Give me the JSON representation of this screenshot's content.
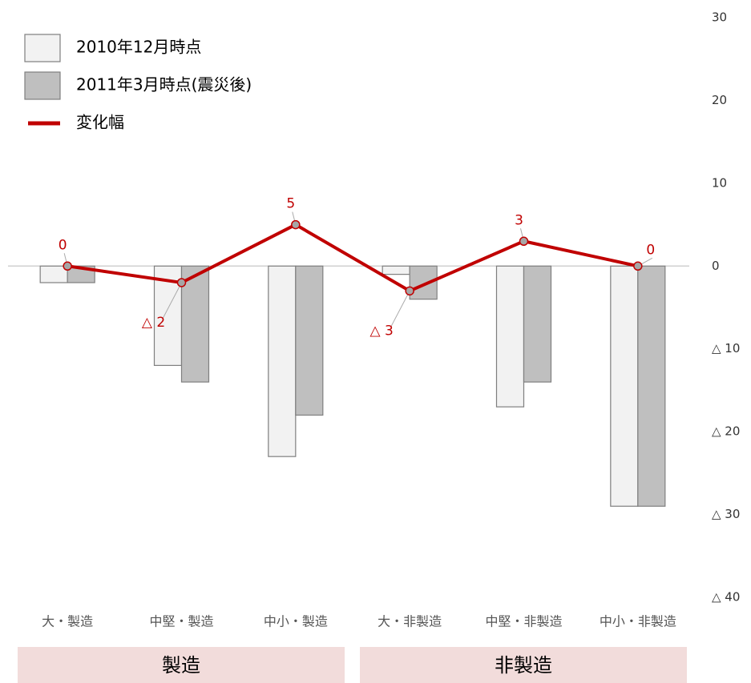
{
  "chart_data": {
    "type": "bar",
    "categories": [
      "大・製造",
      "中堅・製造",
      "中小・製造",
      "大・非製造",
      "中堅・非製造",
      "中小・非製造"
    ],
    "groups": [
      "製造",
      "非製造"
    ],
    "series": [
      {
        "name": "2010年12月時点",
        "color": "#f2f2f2",
        "values": [
          -2,
          -12,
          -23,
          -1,
          -17,
          -29
        ]
      },
      {
        "name": "2011年3月時点(震災後)",
        "color": "#bfbfbf",
        "values": [
          -2,
          -14,
          -18,
          -4,
          -14,
          -29
        ]
      },
      {
        "name": "変化幅",
        "type": "line",
        "color": "#c00000",
        "values": [
          0,
          -2,
          5,
          -3,
          3,
          0
        ],
        "value_labels": [
          "0",
          "△ 2",
          "5",
          "△ 3",
          "3",
          "0"
        ]
      }
    ],
    "ylim": [
      -40,
      30
    ],
    "yticks": [
      30,
      20,
      10,
      0,
      {
        "value": -10,
        "label": "△ 10"
      },
      {
        "value": -20,
        "label": "△ 20"
      },
      {
        "value": -30,
        "label": "△ 30"
      },
      {
        "value": -40,
        "label": "△ 40"
      }
    ]
  }
}
